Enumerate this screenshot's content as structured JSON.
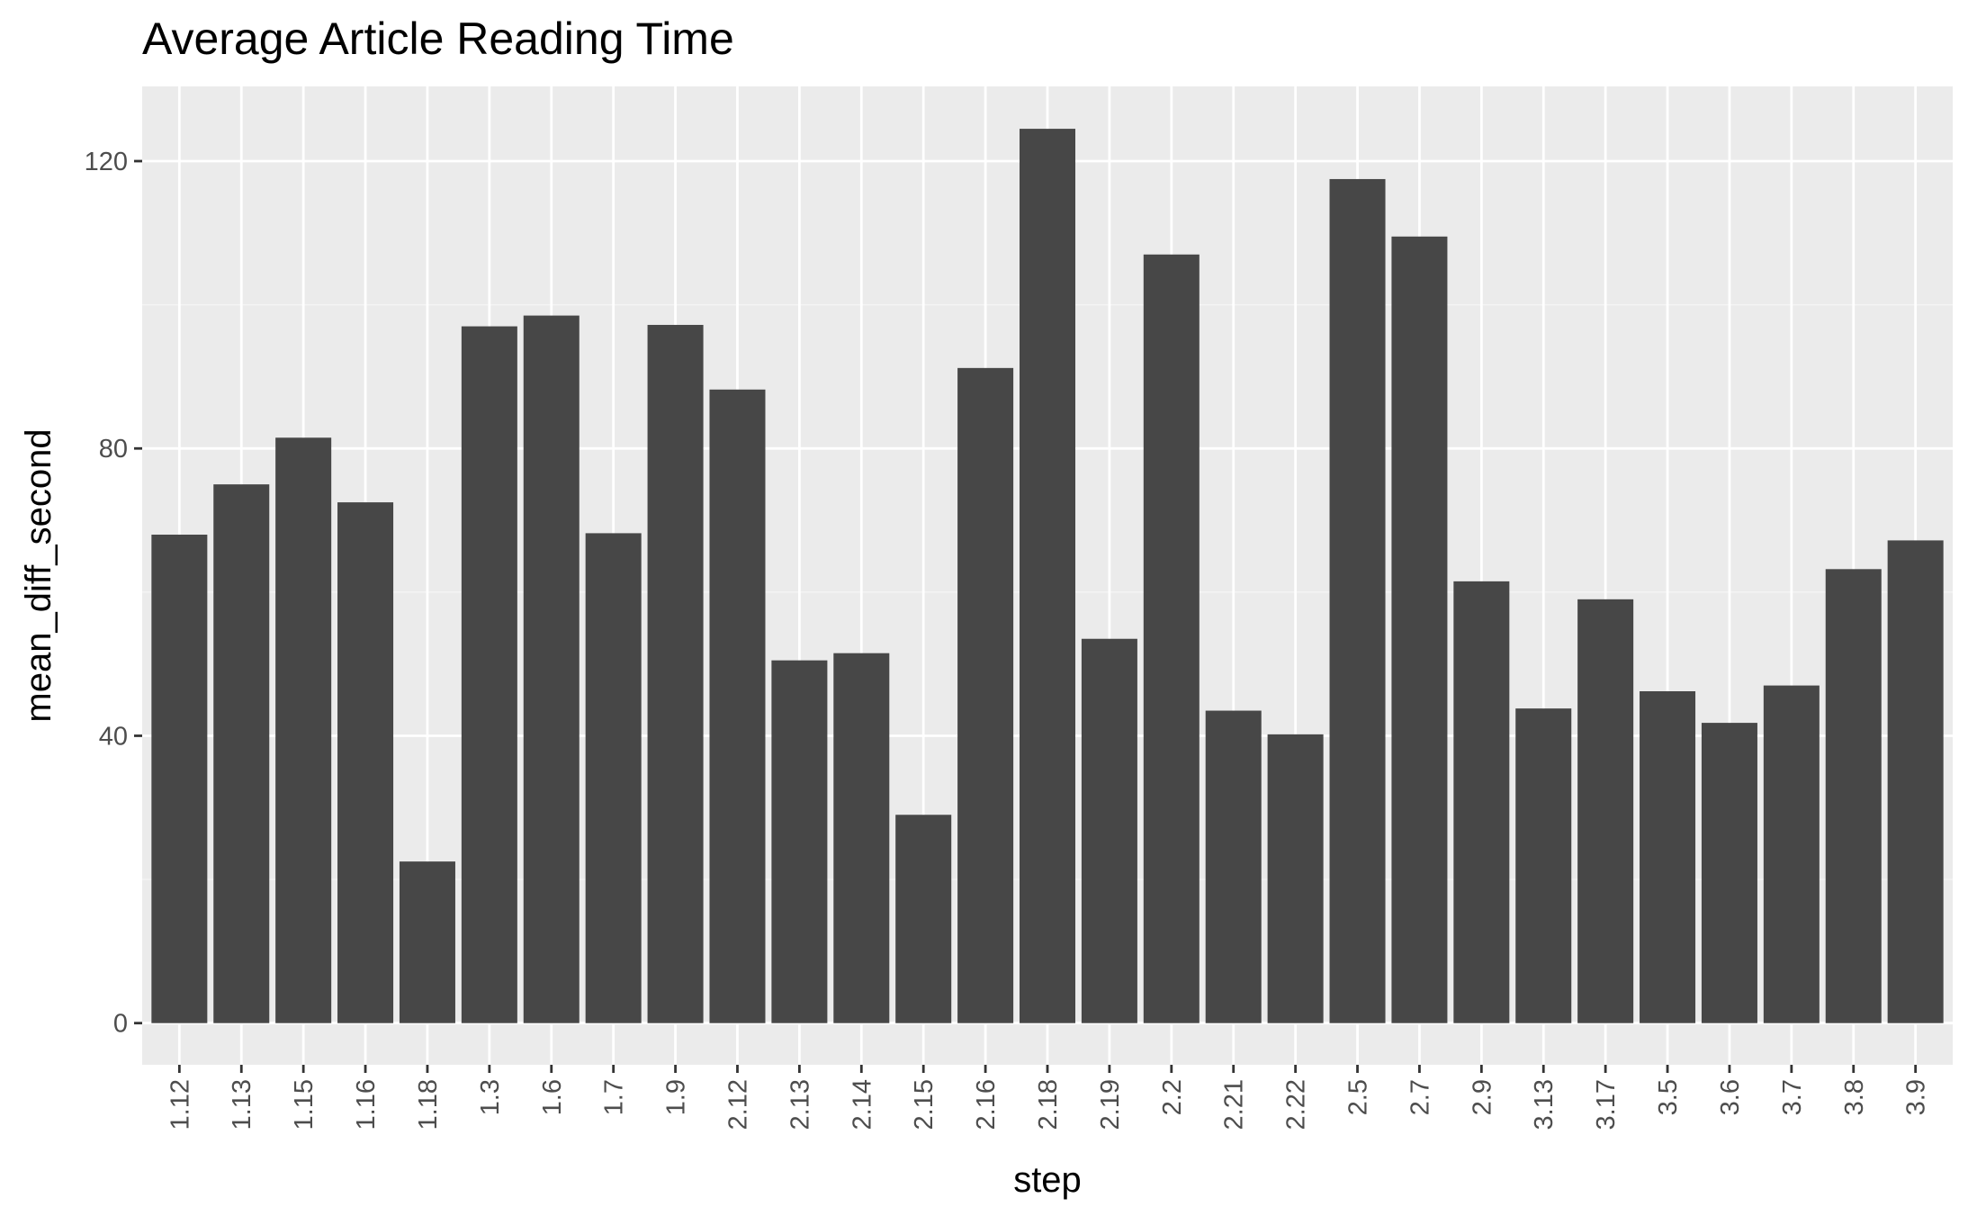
{
  "chart_data": {
    "type": "bar",
    "title": "Average Article Reading Time",
    "xlabel": "step",
    "ylabel": "mean_diff_second",
    "categories": [
      "1.12",
      "1.13",
      "1.15",
      "1.16",
      "1.18",
      "1.3",
      "1.6",
      "1.7",
      "1.9",
      "2.12",
      "2.13",
      "2.14",
      "2.15",
      "2.16",
      "2.18",
      "2.19",
      "2.2",
      "2.21",
      "2.22",
      "2.5",
      "2.7",
      "2.9",
      "3.13",
      "3.17",
      "3.5",
      "3.6",
      "3.7",
      "3.8",
      "3.9"
    ],
    "values": [
      68.0,
      75.0,
      81.5,
      72.5,
      22.5,
      97.0,
      98.5,
      68.2,
      97.2,
      88.2,
      50.5,
      51.5,
      29.0,
      91.2,
      124.5,
      53.5,
      107.0,
      43.5,
      40.2,
      117.5,
      109.5,
      61.5,
      43.8,
      59.0,
      46.2,
      41.8,
      47.0,
      63.2,
      67.2
    ],
    "yticks": [
      0,
      40,
      80,
      120
    ],
    "ylim": [
      -5.8,
      130.4
    ],
    "grid": true,
    "colors": {
      "bar": "#474747",
      "panel": "#ebebeb",
      "grid_major": "#ffffff",
      "grid_minor": "#f4f4f4",
      "tick": "#333333"
    }
  }
}
